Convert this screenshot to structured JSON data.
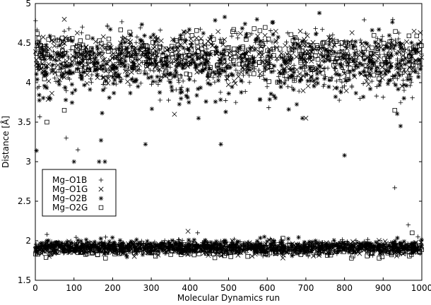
{
  "chart_data": {
    "type": "scatter",
    "title": "",
    "xlabel": "Molecular Dynamics run",
    "ylabel": "Distance [Å]",
    "xlim": [
      0,
      1000
    ],
    "ylim": [
      1.5,
      5
    ],
    "xticks": [
      "0",
      "100",
      "200",
      "300",
      "400",
      "500",
      "600",
      "700",
      "800",
      "900",
      "1000"
    ],
    "yticks": [
      "1.5",
      "2",
      "2.5",
      "3",
      "3.5",
      "4",
      "4.5",
      "5"
    ],
    "grid": false,
    "legend_position": "middle-left",
    "series": [
      {
        "name": "Mg–O1B",
        "marker": "plus",
        "upper_band": {
          "mean": 4.25,
          "spread": 0.28,
          "n_points": 520
        },
        "lower_band": {
          "mean": 1.92,
          "spread": 0.05,
          "n_points": 520
        },
        "outliers": [
          {
            "x": 80,
            "y": 3.3
          },
          {
            "x": 110,
            "y": 3.15
          },
          {
            "x": 75,
            "y": 4.65
          },
          {
            "x": 930,
            "y": 2.67
          },
          {
            "x": 965,
            "y": 2.2
          },
          {
            "x": 30,
            "y": 2.08
          },
          {
            "x": 420,
            "y": 2.1
          },
          {
            "x": 990,
            "y": 2.05
          }
        ]
      },
      {
        "name": "Mg–O1G",
        "marker": "cross",
        "upper_band": {
          "mean": 4.3,
          "spread": 0.22,
          "n_points": 420
        },
        "lower_band": {
          "mean": 1.9,
          "spread": 0.05,
          "n_points": 420
        },
        "outliers": [
          {
            "x": 75,
            "y": 4.8
          },
          {
            "x": 360,
            "y": 3.6
          },
          {
            "x": 700,
            "y": 3.55
          },
          {
            "x": 980,
            "y": 4.65
          },
          {
            "x": 395,
            "y": 2.12
          }
        ]
      },
      {
        "name": "Mg–O2B",
        "marker": "star",
        "upper_band": {
          "mean": 4.2,
          "spread": 0.32,
          "n_points": 480
        },
        "lower_band": {
          "mean": 1.93,
          "spread": 0.05,
          "n_points": 480
        },
        "outliers": [
          {
            "x": 3,
            "y": 3.14
          },
          {
            "x": 100,
            "y": 3.0
          },
          {
            "x": 165,
            "y": 3.0
          },
          {
            "x": 170,
            "y": 3.27
          },
          {
            "x": 285,
            "y": 3.22
          },
          {
            "x": 480,
            "y": 3.22
          },
          {
            "x": 800,
            "y": 3.08
          },
          {
            "x": 735,
            "y": 4.88
          },
          {
            "x": 490,
            "y": 4.83
          },
          {
            "x": 945,
            "y": 3.45
          },
          {
            "x": 180,
            "y": 3.0
          }
        ]
      },
      {
        "name": "Mg–O2G",
        "marker": "square",
        "upper_band": {
          "mean": 4.35,
          "spread": 0.2,
          "n_points": 330
        },
        "lower_band": {
          "mean": 1.88,
          "spread": 0.05,
          "n_points": 330
        },
        "outliers": [
          {
            "x": 30,
            "y": 3.5
          },
          {
            "x": 75,
            "y": 3.65
          },
          {
            "x": 930,
            "y": 3.65
          },
          {
            "x": 975,
            "y": 2.1
          },
          {
            "x": 5,
            "y": 4.62
          }
        ]
      }
    ]
  }
}
